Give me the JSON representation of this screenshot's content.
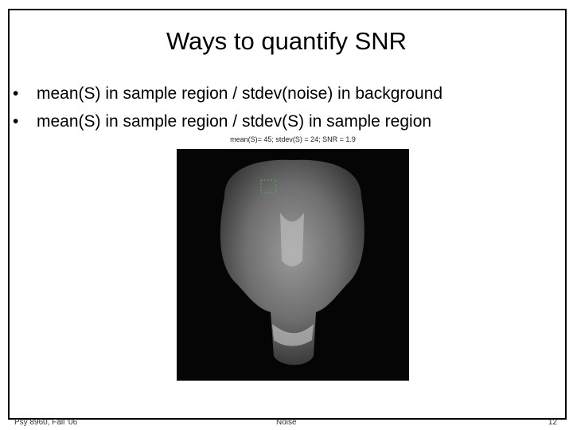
{
  "slide": {
    "title": "Ways to quantify SNR",
    "bullets": [
      "mean(S) in sample region / stdev(noise) in background",
      "mean(S) in sample region / stdev(S) in sample region"
    ],
    "image_caption": "mean(S)= 45; stdev(S) = 24; SNR = 1.9"
  },
  "footer": {
    "left": "Psy 8960, Fall '06",
    "center": "Noise",
    "right": "12"
  }
}
